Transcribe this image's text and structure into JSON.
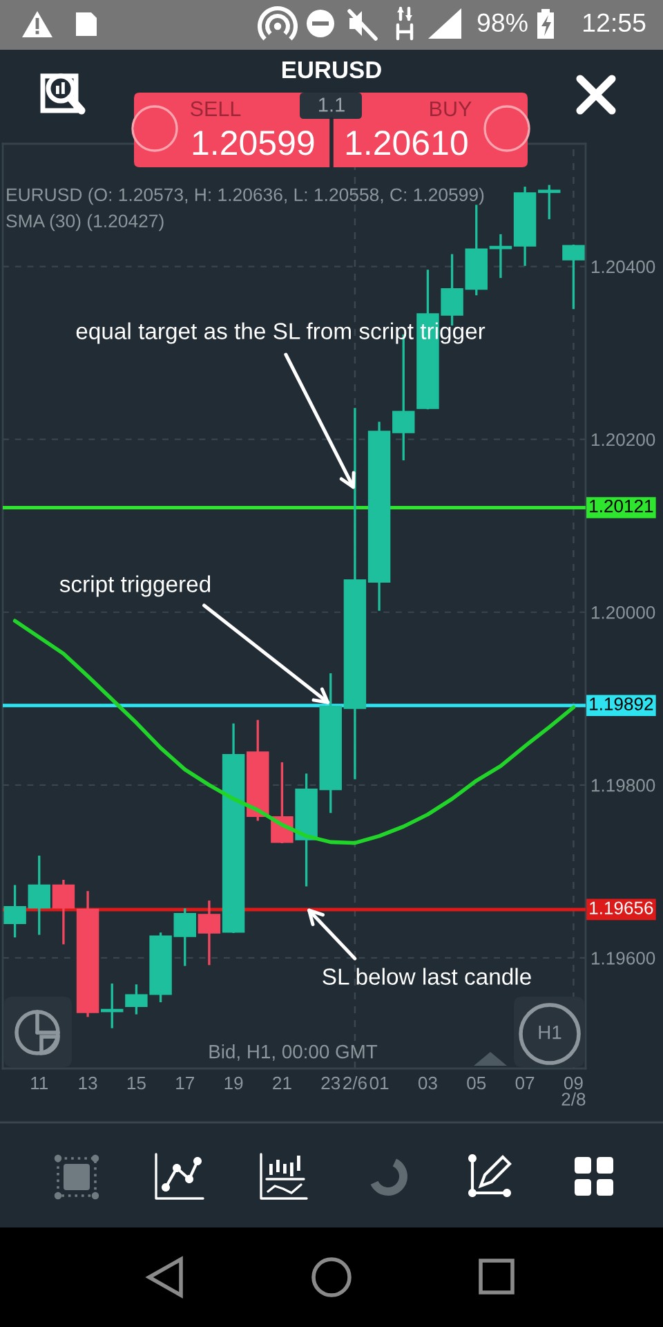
{
  "chart_data": {
    "type": "candlestick",
    "title": "EURUSD",
    "categories": [
      null,
      "11",
      null,
      "13",
      null,
      "15",
      null,
      "17",
      null,
      "19",
      null,
      "21",
      null,
      "23",
      "2/6",
      "01",
      null,
      "03",
      null,
      "05",
      null,
      "07",
      null,
      "09\n2/8"
    ],
    "series": [
      {
        "ohlc": [
          [
            1.1964,
            1.19683,
            1.19625,
            1.19659
          ],
          [
            1.19658,
            1.19717,
            1.19628,
            1.19684
          ],
          [
            1.19684,
            1.19689,
            1.19617,
            1.19658
          ],
          [
            1.19656,
            1.19676,
            1.19533,
            1.19537
          ],
          [
            1.19538,
            1.19569,
            1.1952,
            1.1954
          ],
          [
            1.19544,
            1.19568,
            1.19536,
            1.19557
          ],
          [
            1.19558,
            1.19628,
            1.1955,
            1.19625
          ],
          [
            1.19625,
            1.19656,
            1.19592,
            1.19651
          ],
          [
            1.1965,
            1.19665,
            1.19593,
            1.19629
          ],
          [
            1.1963,
            1.1987,
            1.1963,
            1.19835
          ],
          [
            1.19838,
            1.19874,
            1.1976,
            1.19764
          ],
          [
            1.19763,
            1.19825,
            1.19734,
            1.19734
          ],
          [
            1.19737,
            1.19812,
            1.19684,
            1.19795
          ],
          [
            1.19795,
            1.19928,
            1.19769,
            1.19891
          ],
          [
            1.19889,
            1.20235,
            1.19808,
            1.20037
          ],
          [
            1.20035,
            1.20219,
            1.20003,
            1.20209
          ],
          [
            1.20208,
            1.2032,
            1.20177,
            1.20232
          ],
          [
            1.20236,
            1.20395,
            1.20236,
            1.20345
          ],
          [
            1.20344,
            1.20413,
            1.20333,
            1.20374
          ],
          [
            1.20374,
            1.2047,
            1.20368,
            1.2042
          ],
          [
            1.20421,
            1.20436,
            1.20388,
            1.20423
          ],
          [
            1.20424,
            1.20491,
            1.20402,
            1.20485
          ],
          [
            1.20486,
            1.20493,
            1.20456,
            1.20488
          ],
          [
            1.20408,
            1.20424,
            1.20352,
            1.20424
          ]
        ],
        "colors": [
          "#1dbf9c",
          "#1dbf9c",
          "#f2475e",
          "#f2475e",
          "#1dbf9c",
          "#1dbf9c",
          "#1dbf9c",
          "#1dbf9c",
          "#f2475e",
          "#1dbf9c",
          "#f2475e",
          "#f2475e",
          "#1dbf9c",
          "#1dbf9c",
          "#1dbf9c",
          "#1dbf9c",
          "#1dbf9c",
          "#1dbf9c",
          "#1dbf9c",
          "#1dbf9c",
          "#1dbf9c",
          "#1dbf9c",
          "#1dbf9c",
          "#1dbf9c"
        ]
      },
      {
        "type": "line",
        "color": "#22d42a",
        "values": [
          1.1999,
          1.19971,
          1.19952,
          1.19926,
          1.19899,
          1.19872,
          1.19843,
          1.19818,
          1.198,
          1.19784,
          1.19771,
          1.19754,
          1.19741,
          1.19734,
          1.19733,
          1.19741,
          1.19752,
          1.19766,
          1.19784,
          1.19805,
          1.19822,
          1.19845,
          1.19867,
          1.1989
        ]
      }
    ],
    "ylim": [
      1.19472,
      1.20542
    ],
    "yticks": [
      {
        "value": 1.196,
        "label": "1.19600"
      },
      {
        "value": 1.198,
        "label": "1.19800"
      },
      {
        "value": 1.2,
        "label": "1.20000"
      },
      {
        "value": 1.202,
        "label": "1.20200"
      },
      {
        "value": 1.204,
        "label": "1.20400"
      }
    ],
    "grid": "y",
    "ref_lines": [
      {
        "axis": "y",
        "value": 1.20121,
        "label": "1.20121",
        "color": "#2ee62e"
      },
      {
        "axis": "y",
        "value": 1.19892,
        "label": "1.19892",
        "color": "#2fe2f0"
      },
      {
        "axis": "y",
        "value": 1.19656,
        "label": "1.19656",
        "color": "#dd1a1a"
      },
      {
        "axis": "x",
        "value": "2/6",
        "color": "#3b4750",
        "line_style": "dashed"
      },
      {
        "axis": "x",
        "value": "09\n2/8",
        "color": "#3b4750",
        "line_style": "dashed"
      }
    ],
    "annotations": [
      "98%",
      "12:55",
      "SELL",
      "1.1",
      "BUY",
      "1.20599",
      "1.20610",
      "EURUSD (O: 1.20573, H: 1.20636, L: 1.20558, C: 1.20599)",
      "SMA (30) (1.20427)",
      {
        "text": "equal target as the SL from script trigger",
        "x": "2/6",
        "y": 1.20141
      },
      {
        "text": "script triggered",
        "x": "23",
        "y": 1.19893
      },
      {
        "text": "SL below last candle",
        "y": 1.19658
      },
      "Bid, H1, 00:00 GMT",
      "H1"
    ]
  }
}
